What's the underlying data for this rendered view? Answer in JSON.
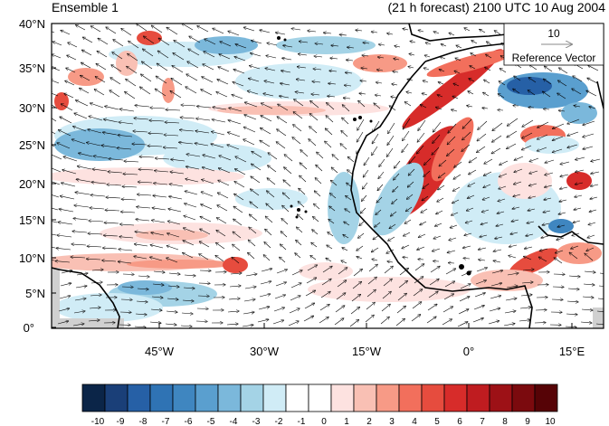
{
  "header": {
    "left_title": "Ensemble 1",
    "right_title": "(21 h forecast) 2100 UTC 10 Aug 2004"
  },
  "map": {
    "lat_labels": [
      "40°N",
      "35°N",
      "30°N",
      "25°N",
      "20°N",
      "15°N",
      "10°N",
      "5°N",
      "0°"
    ],
    "lon_labels": [
      "45°W",
      "30°W",
      "15°W",
      "0°",
      "15°E"
    ],
    "land_mask_color": "#d0d0d0",
    "coast_color": "#000000"
  },
  "reference_vector": {
    "magnitude": "10",
    "label": "Reference Vector"
  },
  "colorbar": {
    "labels": [
      "-10",
      "-9",
      "-8",
      "-7",
      "-6",
      "-5",
      "-4",
      "-3",
      "-2",
      "-1",
      "0",
      "1",
      "2",
      "3",
      "4",
      "5",
      "6",
      "7",
      "8",
      "9",
      "10"
    ],
    "colors": [
      "#0b2548",
      "#1a3f78",
      "#2660a6",
      "#2f73b4",
      "#3f86c0",
      "#5a9fcf",
      "#7bb8db",
      "#a4d3e6",
      "#d0ecf6",
      "#ffffff",
      "#ffffff",
      "#fde2e0",
      "#f9c0b4",
      "#f79a86",
      "#f26f5c",
      "#e64c3e",
      "#d72c2a",
      "#bf1c20",
      "#9d1116",
      "#7b0a0e",
      "#560306"
    ]
  }
}
